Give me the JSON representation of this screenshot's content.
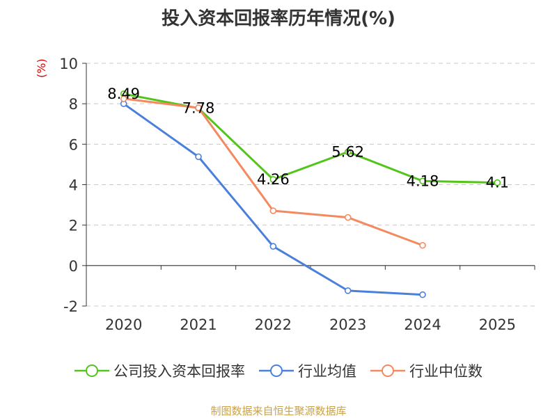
{
  "chart_data": {
    "type": "line",
    "title": "投入资本回报率历年情况(%)",
    "ylabel": "(%)",
    "categories": [
      "2020",
      "2021",
      "2022",
      "2023",
      "2024",
      "2025"
    ],
    "ylim": [
      -2,
      10
    ],
    "yticks": [
      -2,
      0,
      2,
      4,
      6,
      8,
      10
    ],
    "grid": true,
    "legend_position": "bottom",
    "series": [
      {
        "name": "公司投入资本回报率",
        "color": "#52c41a",
        "values": [
          8.49,
          7.78,
          4.26,
          5.62,
          4.18,
          4.1
        ],
        "labels": [
          "8.49",
          "7.78",
          "4.26",
          "5.62",
          "4.18",
          "4.1"
        ]
      },
      {
        "name": "行业均值",
        "color": "#4a7fdc",
        "values": [
          8.0,
          5.38,
          0.95,
          -1.24,
          -1.44,
          null
        ]
      },
      {
        "name": "行业中位数",
        "color": "#f4895f",
        "values": [
          8.25,
          7.8,
          2.71,
          2.38,
          1.0,
          null
        ]
      }
    ]
  },
  "footer": {
    "source": "制图数据来自恒生聚源数据库"
  }
}
